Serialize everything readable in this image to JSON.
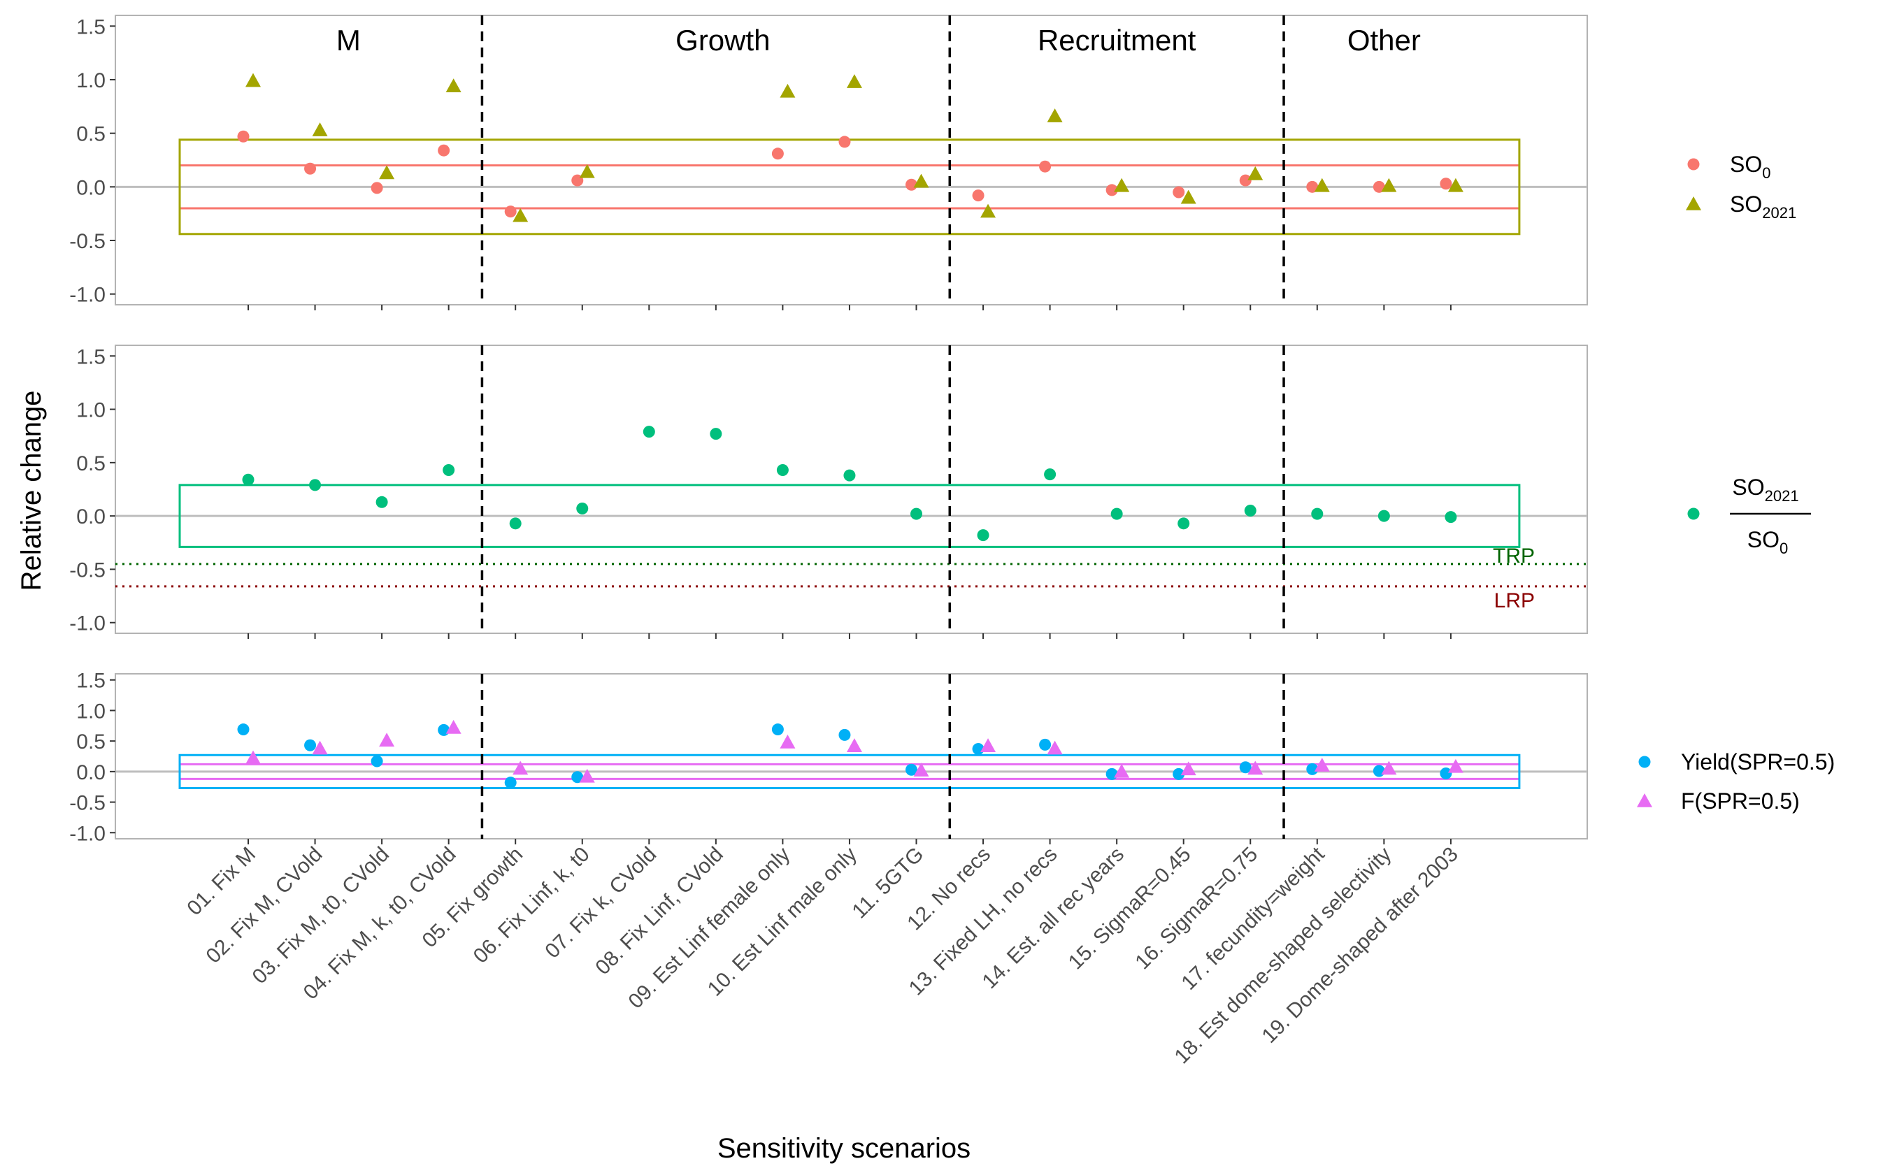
{
  "colors": {
    "so0": "#F8766D",
    "so2021": "#A3A500",
    "ratio": "#00BF7D",
    "yield": "#00B0F6",
    "f": "#E76BF3",
    "trp": "#006400",
    "lrp": "#8B0000"
  },
  "chart_data": {
    "type": "scatter",
    "xlabel": "Sensitivity scenarios",
    "ylabel": "Relative change",
    "ylim": [
      -1.1,
      1.6
    ],
    "yticks": [
      "1.5",
      "1.0",
      "0.5",
      "0.0",
      "-0.5",
      "-1.0"
    ],
    "ytick_values": [
      1.5,
      1.0,
      0.5,
      0.0,
      -0.5,
      -1.0
    ],
    "categories": [
      "01. Fix M",
      "02. Fix M, CVold",
      "03. Fix M, t0, CVold",
      "04. Fix M, k, t0, CVold",
      "05. Fix growth",
      "06. Fix Linf, k, t0",
      "07. Fix k, CVold",
      "08. Fix Linf, CVold",
      "09. Est Linf female only",
      "10. Est Linf male only",
      "11. 5GTG",
      "12. No recs",
      "13. Fixed LH, no recs",
      "14. Est. all rec years",
      "15. SigmaR=0.45",
      "16. SigmaR=0.75",
      "17. fecundity=weight",
      "18. Est dome-shaped selectivity",
      "19. Dome-shaped after 2003"
    ],
    "groups": [
      {
        "label": "M",
        "start": 1,
        "end": 4
      },
      {
        "label": "Growth",
        "start": 5,
        "end": 11
      },
      {
        "label": "Recruitment",
        "start": 12,
        "end": 16
      },
      {
        "label": "Other",
        "start": 17,
        "end": 19
      }
    ],
    "separators_after": [
      4,
      11,
      16
    ],
    "panels": [
      {
        "id": "so",
        "series": [
          {
            "name_main": "SO",
            "name_sub": "0",
            "shape": "circle",
            "color_key": "so0",
            "values": [
              0.47,
              0.17,
              -0.01,
              0.34,
              -0.23,
              0.06,
              null,
              null,
              0.31,
              0.42,
              0.02,
              -0.08,
              0.19,
              -0.03,
              -0.05,
              0.06,
              0.0,
              0.0,
              0.03
            ]
          },
          {
            "name_main": "SO",
            "name_sub": "2021",
            "shape": "triangle",
            "color_key": "so2021",
            "values": [
              0.99,
              0.53,
              0.13,
              0.94,
              -0.27,
              0.14,
              null,
              null,
              0.89,
              0.98,
              0.05,
              -0.23,
              0.66,
              0.01,
              -0.1,
              0.12,
              0.01,
              0.01,
              0.01
            ]
          }
        ],
        "hlines": [
          {
            "y": 0.2,
            "color_key": "so0"
          },
          {
            "y": -0.2,
            "color_key": "so0"
          }
        ],
        "box": {
          "ymin": -0.44,
          "ymax": 0.44,
          "color_key": "so2021"
        }
      },
      {
        "id": "ratio",
        "series": [
          {
            "name_num": "SO",
            "name_num_sub": "2021",
            "name_den": "SO",
            "name_den_sub": "0",
            "shape": "circle",
            "color_key": "ratio",
            "values": [
              0.34,
              0.29,
              0.13,
              0.43,
              -0.07,
              0.07,
              0.79,
              0.77,
              0.43,
              0.38,
              0.02,
              -0.18,
              0.39,
              0.02,
              -0.07,
              0.05,
              0.02,
              0.0,
              -0.01
            ]
          }
        ],
        "box": {
          "ymin": -0.29,
          "ymax": 0.29,
          "color_key": "ratio"
        },
        "reflines": [
          {
            "label": "TRP",
            "y": -0.45,
            "color_key": "trp"
          },
          {
            "label": "LRP",
            "y": -0.66,
            "color_key": "lrp"
          }
        ]
      },
      {
        "id": "yield",
        "series": [
          {
            "name": "Yield(SPR=0.5)",
            "shape": "circle",
            "color_key": "yield",
            "values": [
              0.69,
              0.43,
              0.17,
              0.68,
              -0.18,
              -0.09,
              null,
              null,
              0.69,
              0.6,
              0.03,
              0.37,
              0.44,
              -0.04,
              -0.04,
              0.07,
              0.04,
              0.01,
              -0.03
            ]
          },
          {
            "name": "F(SPR=0.5)",
            "shape": "triangle",
            "color_key": "f",
            "values": [
              0.22,
              0.38,
              0.51,
              0.72,
              0.05,
              -0.08,
              null,
              null,
              0.48,
              0.42,
              0.02,
              0.42,
              0.38,
              0.0,
              0.04,
              0.05,
              0.1,
              0.05,
              0.08
            ]
          }
        ],
        "hlines": [
          {
            "y": 0.12,
            "color_key": "f"
          },
          {
            "y": -0.12,
            "color_key": "f"
          }
        ],
        "box": {
          "ymin": -0.27,
          "ymax": 0.27,
          "color_key": "yield"
        }
      }
    ]
  }
}
